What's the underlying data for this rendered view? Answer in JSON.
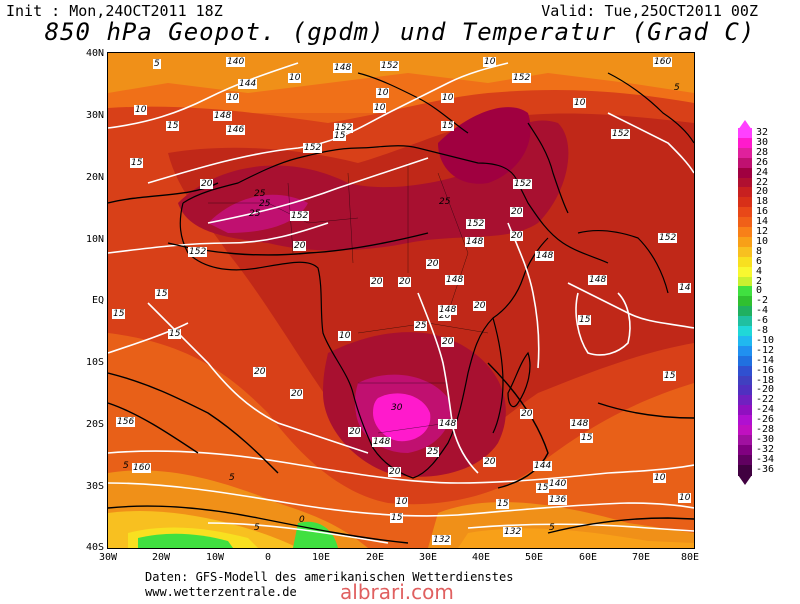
{
  "header": {
    "init": "Init : Mon,24OCT2011 18Z",
    "valid": "Valid: Tue,25OCT2011 00Z",
    "title": "850 hPa Geopot. (gpdm) und Temperatur (Grad C)"
  },
  "footer": {
    "source": "Daten: GFS-Modell des amerikanischen Wetterdienstes",
    "url": "www.wetterzentrale.de",
    "watermark": "albrari.com"
  },
  "lat_labels": [
    "40N",
    "30N",
    "20N",
    "10N",
    "EQ",
    "10S",
    "20S",
    "30S",
    "40S"
  ],
  "lon_labels": [
    "30W",
    "20W",
    "10W",
    "0",
    "10E",
    "20E",
    "30E",
    "40E",
    "50E",
    "60E",
    "70E",
    "80E"
  ],
  "legend": {
    "values": [
      "32",
      "30",
      "28",
      "26",
      "24",
      "22",
      "20",
      "18",
      "16",
      "14",
      "12",
      "10",
      "8",
      "6",
      "4",
      "2",
      "0",
      "-2",
      "-4",
      "-6",
      "-8",
      "-10",
      "-12",
      "-14",
      "-16",
      "-18",
      "-20",
      "-22",
      "-24",
      "-26",
      "-28",
      "-30",
      "-32",
      "-34",
      "-36"
    ],
    "colors": [
      "#ff40ff",
      "#ff1acc",
      "#e0209c",
      "#c01070",
      "#a00040",
      "#b01030",
      "#c82020",
      "#d83018",
      "#e84818",
      "#f06018",
      "#f88018",
      "#f8a018",
      "#f8c020",
      "#f8e020",
      "#f8f830",
      "#c8f030",
      "#40e040",
      "#30c030",
      "#20b060",
      "#20c0a0",
      "#20d8d8",
      "#20b8f0",
      "#2090f0",
      "#2070e0",
      "#3050d0",
      "#4040c0",
      "#5030c0",
      "#7020c0",
      "#9010c0",
      "#b010d0",
      "#c010c0",
      "#a010a0",
      "#800080",
      "#600060",
      "#400040"
    ]
  },
  "contour_labels": [
    {
      "text": "5"
    },
    {
      "text": "140"
    },
    {
      "text": "10"
    },
    {
      "text": "148"
    },
    {
      "text": "152"
    },
    {
      "text": "10"
    },
    {
      "text": "160"
    },
    {
      "text": "152"
    },
    {
      "text": "144"
    },
    {
      "text": "10"
    },
    {
      "text": "10"
    },
    {
      "text": "10"
    },
    {
      "text": "10"
    },
    {
      "text": "10"
    },
    {
      "text": "10"
    },
    {
      "text": "10"
    },
    {
      "text": "15"
    },
    {
      "text": "148"
    },
    {
      "text": "146"
    },
    {
      "text": "152"
    },
    {
      "text": "15"
    },
    {
      "text": "152"
    },
    {
      "text": "15"
    },
    {
      "text": "15"
    },
    {
      "text": "152"
    },
    {
      "text": "20"
    },
    {
      "text": "25"
    },
    {
      "text": "25"
    },
    {
      "text": "25"
    },
    {
      "text": "152"
    },
    {
      "text": "25"
    },
    {
      "text": "152"
    },
    {
      "text": "20"
    },
    {
      "text": "152"
    },
    {
      "text": "20"
    },
    {
      "text": "20"
    },
    {
      "text": "148"
    },
    {
      "text": "152"
    },
    {
      "text": "20"
    },
    {
      "text": "148"
    },
    {
      "text": "20"
    },
    {
      "text": "148"
    },
    {
      "text": "20"
    },
    {
      "text": "15"
    },
    {
      "text": "15"
    },
    {
      "text": "15"
    },
    {
      "text": "20"
    },
    {
      "text": "20"
    },
    {
      "text": "25"
    },
    {
      "text": "20"
    },
    {
      "text": "148"
    },
    {
      "text": "20"
    },
    {
      "text": "30"
    },
    {
      "text": "148"
    },
    {
      "text": "156"
    },
    {
      "text": "20"
    },
    {
      "text": "148"
    },
    {
      "text": "25"
    },
    {
      "text": "20"
    },
    {
      "text": "20"
    },
    {
      "text": "20"
    },
    {
      "text": "144"
    },
    {
      "text": "160"
    },
    {
      "text": "5"
    },
    {
      "text": "15"
    },
    {
      "text": "140"
    },
    {
      "text": "136"
    },
    {
      "text": "10"
    },
    {
      "text": "15"
    },
    {
      "text": "10"
    },
    {
      "text": "132"
    },
    {
      "text": "132"
    },
    {
      "text": "5"
    },
    {
      "text": "15"
    },
    {
      "text": "5"
    },
    {
      "text": "0"
    },
    {
      "text": "5"
    },
    {
      "text": "15"
    },
    {
      "text": "148"
    },
    {
      "text": "20"
    },
    {
      "text": "14"
    },
    {
      "text": "10"
    },
    {
      "text": "15"
    },
    {
      "text": "148"
    },
    {
      "text": "15"
    },
    {
      "text": "152"
    },
    {
      "text": "10"
    },
    {
      "text": "5"
    }
  ]
}
